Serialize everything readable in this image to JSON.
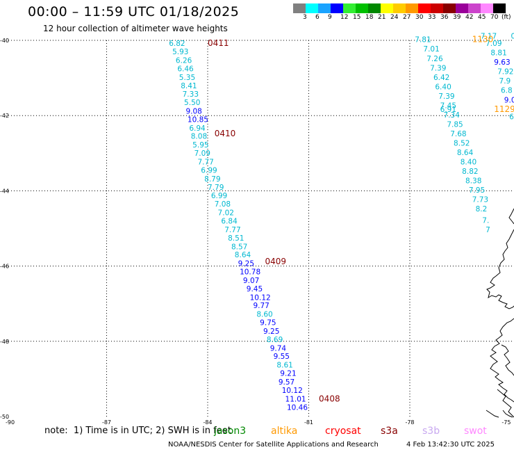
{
  "title": "00:00 – 11:59 UTC 01/18/2025",
  "subtitle": "12 hour collection of altimeter wave heights",
  "legend": {
    "colors": [
      "#808080",
      "#00ffff",
      "#1aa3ff",
      "#0000ff",
      "#33ee33",
      "#00c000",
      "#008800",
      "#ffff00",
      "#ffcc00",
      "#ff9900",
      "#ff0000",
      "#cc0000",
      "#880000",
      "#990099",
      "#cc44cc",
      "#ff88ff",
      "#000000"
    ],
    "labels": [
      "3",
      "6",
      "9",
      "12",
      "15",
      "18",
      "21",
      "24",
      "27",
      "30",
      "33",
      "36",
      "39",
      "42",
      "45",
      "70",
      "(ft)"
    ]
  },
  "map": {
    "lon_ticks": [
      "-90",
      "-87",
      "-84",
      "-81",
      "-78",
      "-75"
    ],
    "lat_ticks": [
      "-40",
      "-42",
      "-44",
      "-46",
      "-48",
      "-50"
    ]
  },
  "track_main": {
    "hour_labels": [
      {
        "text": "0411",
        "lon": -84.0,
        "lat": -40.15
      },
      {
        "text": "0410",
        "lon": -83.8,
        "lat": -42.55
      },
      {
        "text": "0409",
        "lon": -82.3,
        "lat": -45.95
      },
      {
        "text": "0408",
        "lon": -80.7,
        "lat": -49.6
      }
    ],
    "points": [
      {
        "v": "6.82",
        "c": "#00b8d0",
        "lon": -85.15,
        "lat": -40.15
      },
      {
        "v": "5.93",
        "c": "#00b8d0",
        "lon": -85.05,
        "lat": -40.37
      },
      {
        "v": "6.26",
        "c": "#00b8d0",
        "lon": -84.95,
        "lat": -40.6
      },
      {
        "v": "6.46",
        "c": "#00b8d0",
        "lon": -84.9,
        "lat": -40.82
      },
      {
        "v": "5.35",
        "c": "#00b8d0",
        "lon": -84.85,
        "lat": -41.05
      },
      {
        "v": "8.41",
        "c": "#00b8d0",
        "lon": -84.8,
        "lat": -41.28
      },
      {
        "v": "7.33",
        "c": "#00b8d0",
        "lon": -84.75,
        "lat": -41.5
      },
      {
        "v": "5.50",
        "c": "#00b8d0",
        "lon": -84.7,
        "lat": -41.72
      },
      {
        "v": "9.08",
        "c": "#0000ff",
        "lon": -84.65,
        "lat": -41.95
      },
      {
        "v": "10.85",
        "c": "#0000ff",
        "lon": -84.6,
        "lat": -42.17
      },
      {
        "v": "6.94",
        "c": "#00b8d0",
        "lon": -84.55,
        "lat": -42.4
      },
      {
        "v": "8.08",
        "c": "#00b8d0",
        "lon": -84.5,
        "lat": -42.62
      },
      {
        "v": "5.95",
        "c": "#00b8d0",
        "lon": -84.45,
        "lat": -42.85
      },
      {
        "v": "7.09",
        "c": "#00b8d0",
        "lon": -84.4,
        "lat": -43.07
      },
      {
        "v": "7.77",
        "c": "#00b8d0",
        "lon": -84.3,
        "lat": -43.3
      },
      {
        "v": "6.99",
        "c": "#00b8d0",
        "lon": -84.2,
        "lat": -43.52
      },
      {
        "v": "8.79",
        "c": "#00b8d0",
        "lon": -84.1,
        "lat": -43.75
      },
      {
        "v": "7.79",
        "c": "#00b8d0",
        "lon": -84.0,
        "lat": -43.97
      },
      {
        "v": "6.99",
        "c": "#00b8d0",
        "lon": -83.9,
        "lat": -44.2
      },
      {
        "v": "7.08",
        "c": "#00b8d0",
        "lon": -83.8,
        "lat": -44.42
      },
      {
        "v": "7.02",
        "c": "#00b8d0",
        "lon": -83.7,
        "lat": -44.65
      },
      {
        "v": "6.84",
        "c": "#00b8d0",
        "lon": -83.6,
        "lat": -44.87
      },
      {
        "v": "7.77",
        "c": "#00b8d0",
        "lon": -83.5,
        "lat": -45.1
      },
      {
        "v": "8.51",
        "c": "#00b8d0",
        "lon": -83.4,
        "lat": -45.32
      },
      {
        "v": "8.57",
        "c": "#00b8d0",
        "lon": -83.3,
        "lat": -45.55
      },
      {
        "v": "8.64",
        "c": "#00b8d0",
        "lon": -83.2,
        "lat": -45.77
      },
      {
        "v": "9.25",
        "c": "#0000ff",
        "lon": -83.1,
        "lat": -46.0
      },
      {
        "v": "10.78",
        "c": "#0000ff",
        "lon": -83.05,
        "lat": -46.22
      },
      {
        "v": "9.07",
        "c": "#0000ff",
        "lon": -82.95,
        "lat": -46.45
      },
      {
        "v": "9.45",
        "c": "#0000ff",
        "lon": -82.85,
        "lat": -46.67
      },
      {
        "v": "10.12",
        "c": "#0000ff",
        "lon": -82.75,
        "lat": -46.9
      },
      {
        "v": "9.77",
        "c": "#0000ff",
        "lon": -82.65,
        "lat": -47.12
      },
      {
        "v": "8.60",
        "c": "#00b8d0",
        "lon": -82.55,
        "lat": -47.35
      },
      {
        "v": "9.75",
        "c": "#0000ff",
        "lon": -82.45,
        "lat": -47.57
      },
      {
        "v": "9.25",
        "c": "#0000ff",
        "lon": -82.35,
        "lat": -47.8
      },
      {
        "v": "8.69",
        "c": "#00b8d0",
        "lon": -82.25,
        "lat": -48.02
      },
      {
        "v": "9.74",
        "c": "#0000ff",
        "lon": -82.15,
        "lat": -48.25
      },
      {
        "v": "9.55",
        "c": "#0000ff",
        "lon": -82.05,
        "lat": -48.47
      },
      {
        "v": "8.61",
        "c": "#00b8d0",
        "lon": -81.95,
        "lat": -48.7
      },
      {
        "v": "9.21",
        "c": "#0000ff",
        "lon": -81.85,
        "lat": -48.92
      },
      {
        "v": "9.57",
        "c": "#0000ff",
        "lon": -81.9,
        "lat": -49.15
      },
      {
        "v": "10.12",
        "c": "#0000ff",
        "lon": -81.8,
        "lat": -49.37
      },
      {
        "v": "11.01",
        "c": "#0000ff",
        "lon": -81.7,
        "lat": -49.6
      },
      {
        "v": "10.46",
        "c": "#0000ff",
        "lon": -81.65,
        "lat": -49.82
      }
    ]
  },
  "track_east": {
    "hour_labels": [
      {
        "text": "1130",
        "lon": -76.15,
        "lat": -40.05,
        "c": "#ff9900"
      },
      {
        "text": "1129",
        "lon": -75.5,
        "lat": -41.9,
        "c": "#ff9900"
      }
    ],
    "points": [
      {
        "v": "7.81",
        "c": "#00b8d0",
        "lon": -77.85,
        "lat": -40.05
      },
      {
        "v": "7.01",
        "c": "#00b8d0",
        "lon": -77.6,
        "lat": -40.3
      },
      {
        "v": "7.26",
        "c": "#00b8d0",
        "lon": -77.5,
        "lat": -40.55
      },
      {
        "v": "7.39",
        "c": "#00b8d0",
        "lon": -77.4,
        "lat": -40.8
      },
      {
        "v": "6.42",
        "c": "#00b8d0",
        "lon": -77.3,
        "lat": -41.05
      },
      {
        "v": "6.40",
        "c": "#00b8d0",
        "lon": -77.25,
        "lat": -41.3
      },
      {
        "v": "7.39",
        "c": "#00b8d0",
        "lon": -77.15,
        "lat": -41.55
      },
      {
        "v": "7.45",
        "c": "#00b8d0",
        "lon": -77.1,
        "lat": -41.8
      },
      {
        "v": "6.91",
        "c": "#00b8d0",
        "lon": -77.1,
        "lat": -41.9
      },
      {
        "v": "7.34",
        "c": "#00b8d0",
        "lon": -77.0,
        "lat": -42.05
      },
      {
        "v": "7.85",
        "c": "#00b8d0",
        "lon": -76.9,
        "lat": -42.3
      },
      {
        "v": "7.68",
        "c": "#00b8d0",
        "lon": -76.8,
        "lat": -42.55
      },
      {
        "v": "8.52",
        "c": "#00b8d0",
        "lon": -76.7,
        "lat": -42.8
      },
      {
        "v": "8.64",
        "c": "#00b8d0",
        "lon": -76.6,
        "lat": -43.05
      },
      {
        "v": "8.40",
        "c": "#00b8d0",
        "lon": -76.5,
        "lat": -43.3
      },
      {
        "v": "8.82",
        "c": "#00b8d0",
        "lon": -76.45,
        "lat": -43.55
      },
      {
        "v": "8.38",
        "c": "#00b8d0",
        "lon": -76.35,
        "lat": -43.8
      },
      {
        "v": "7.95",
        "c": "#00b8d0",
        "lon": -76.25,
        "lat": -44.05
      },
      {
        "v": "7.73",
        "c": "#00b8d0",
        "lon": -76.15,
        "lat": -44.3
      },
      {
        "v": "8.2",
        "c": "#00b8d0",
        "lon": -76.05,
        "lat": -44.55
      },
      {
        "v": "7.",
        "c": "#00b8d0",
        "lon": -75.85,
        "lat": -44.85
      },
      {
        "v": "7",
        "c": "#00b8d0",
        "lon": -75.75,
        "lat": -45.1
      },
      {
        "v": "7.17",
        "c": "#00b8d0",
        "lon": -75.9,
        "lat": -39.95
      },
      {
        "v": "7.09",
        "c": "#00b8d0",
        "lon": -75.75,
        "lat": -40.15
      },
      {
        "v": "8.81",
        "c": "#00b8d0",
        "lon": -75.6,
        "lat": -40.4
      },
      {
        "v": "9.63",
        "c": "#0000ff",
        "lon": -75.5,
        "lat": -40.65
      },
      {
        "v": "7.92",
        "c": "#00b8d0",
        "lon": -75.4,
        "lat": -40.9
      },
      {
        "v": "7.9",
        "c": "#00b8d0",
        "lon": -75.35,
        "lat": -41.15
      },
      {
        "v": "6.8",
        "c": "#00b8d0",
        "lon": -75.3,
        "lat": -41.4
      },
      {
        "v": "9.0",
        "c": "#0000ff",
        "lon": -75.2,
        "lat": -41.65
      },
      {
        "v": "6",
        "c": "#00b8d0",
        "lon": -75.05,
        "lat": -42.1
      },
      {
        "v": "0",
        "c": "#00b8d0",
        "lon": -75.0,
        "lat": -39.95
      }
    ]
  },
  "note": "note:  1) Time is in UTC; 2) SWH is in feet",
  "satellites": [
    {
      "name": "jason3",
      "color": "#008800"
    },
    {
      "name": "altika",
      "color": "#ff9900"
    },
    {
      "name": "cryosat",
      "color": "#ff0000"
    },
    {
      "name": "s3a",
      "color": "#880000"
    },
    {
      "name": "s3b",
      "color": "#c8a8f0"
    },
    {
      "name": "swot",
      "color": "#ff88ff"
    }
  ],
  "credit": "NOAA/NESDIS Center for Satellite Applications and Research",
  "timestamp": "4 Feb 13:42:30 UTC 2025"
}
